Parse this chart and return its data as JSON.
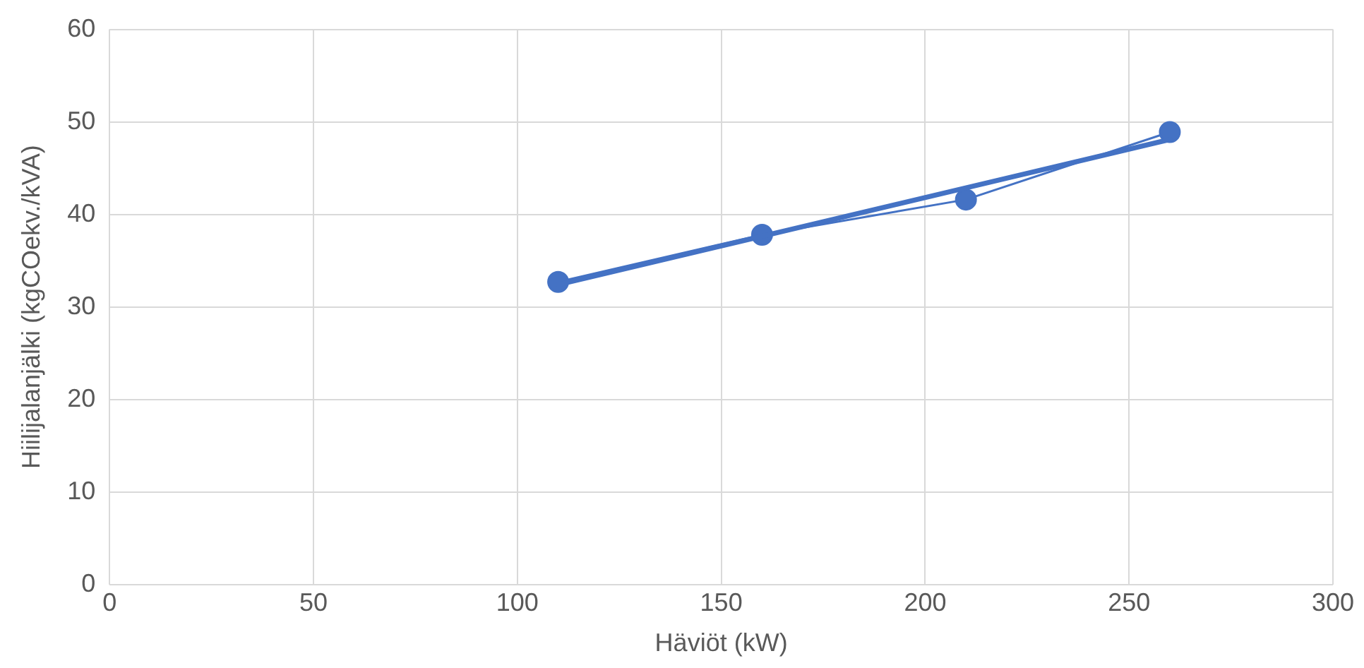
{
  "chart_data": {
    "type": "line",
    "xlabel": "Häviöt (kW)",
    "ylabel": "Hiilijalanjälki (kgCOekv./kVA)",
    "xlim": [
      0,
      300
    ],
    "xticks": [
      0,
      50,
      100,
      150,
      200,
      250,
      300
    ],
    "ylim": [
      0,
      60
    ],
    "yticks": [
      0,
      10,
      20,
      30,
      40,
      50,
      60
    ],
    "grid": true,
    "legend": false,
    "marker": "circle",
    "series": [
      {
        "color": "#4472c4",
        "x": [
          110,
          160,
          210,
          260
        ],
        "values": [
          32.7,
          37.8,
          41.6,
          48.9
        ]
      },
      {
        "type": "line",
        "marker": "none",
        "color": "#4472c4",
        "x": [
          110,
          260
        ],
        "values": [
          32.4,
          48.1
        ]
      }
    ]
  }
}
